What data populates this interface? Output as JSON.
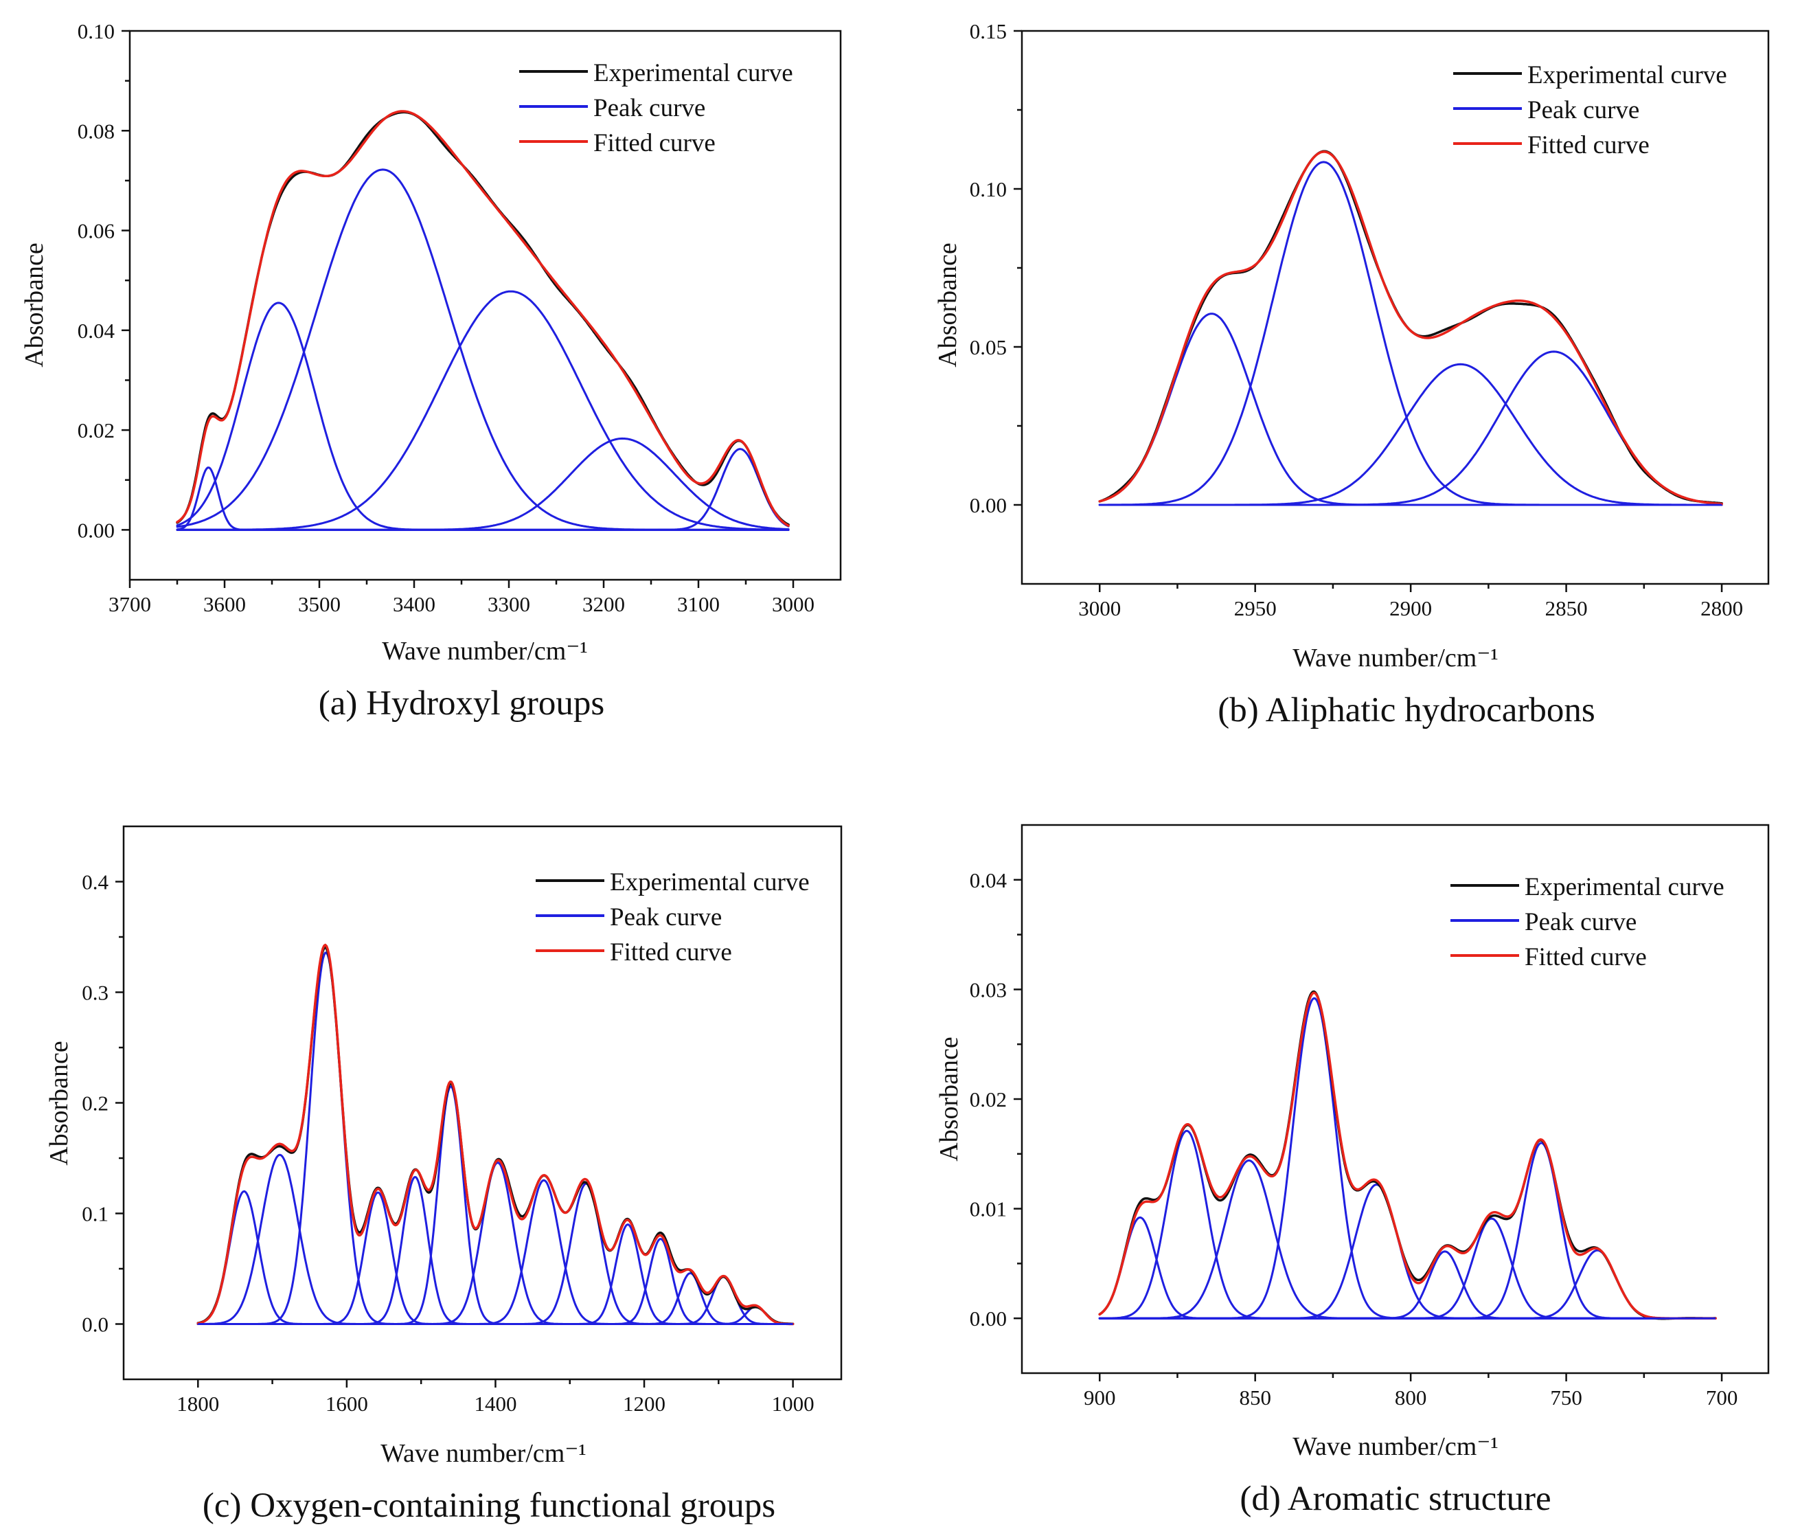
{
  "chart_data": [
    {
      "type": "line",
      "caption": "(a) Hydroxyl groups",
      "xlabel": "Wave number/cm⁻¹",
      "ylabel": "Absorbance",
      "xlim": [
        3700,
        2950
      ],
      "ylim": [
        -0.01,
        0.1
      ],
      "xticks": [
        {
          "value": 3700,
          "label": "3700"
        },
        {
          "value": 3600,
          "label": "3600"
        },
        {
          "value": 3500,
          "label": "3500"
        },
        {
          "value": 3400,
          "label": "3400"
        },
        {
          "value": 3300,
          "label": "3300"
        },
        {
          "value": 3200,
          "label": "3200"
        },
        {
          "value": 3100,
          "label": "3100"
        },
        {
          "value": 3000,
          "label": "3000"
        }
      ],
      "yticks": [
        {
          "value": 0.0,
          "label": "0.00"
        },
        {
          "value": 0.02,
          "label": "0.02"
        },
        {
          "value": 0.04,
          "label": "0.04"
        },
        {
          "value": 0.06,
          "label": "0.06"
        },
        {
          "value": 0.08,
          "label": "0.08"
        },
        {
          "value": 0.1,
          "label": "0.10"
        }
      ],
      "x_range": [
        3650,
        3005
      ],
      "legend": {
        "position": "top-right",
        "entries": [
          {
            "label": "Experimental curve",
            "color": "#111111"
          },
          {
            "label": "Peak curve",
            "color": "#1f1fe0"
          },
          {
            "label": "Fitted curve",
            "color": "#e8231a"
          }
        ]
      },
      "peaks": [
        {
          "center": 3617,
          "height": 0.0125,
          "fwhm": 24
        },
        {
          "center": 3543,
          "height": 0.0455,
          "fwhm": 90
        },
        {
          "center": 3433,
          "height": 0.0722,
          "fwhm": 165
        },
        {
          "center": 3298,
          "height": 0.0478,
          "fwhm": 175
        },
        {
          "center": 3180,
          "height": 0.0183,
          "fwhm": 130
        },
        {
          "center": 3056,
          "height": 0.0162,
          "fwhm": 48
        }
      ]
    },
    {
      "type": "line",
      "caption": "(b) Aliphatic hydrocarbons",
      "xlabel": "Wave number/cm⁻¹",
      "ylabel": "Absorbance",
      "xlim": [
        3025,
        2785
      ],
      "ylim": [
        -0.025,
        0.15
      ],
      "xticks": [
        {
          "value": 3000,
          "label": "3000"
        },
        {
          "value": 2950,
          "label": "2950"
        },
        {
          "value": 2900,
          "label": "2900"
        },
        {
          "value": 2850,
          "label": "2850"
        },
        {
          "value": 2800,
          "label": "2800"
        }
      ],
      "yticks": [
        {
          "value": 0.0,
          "label": "0.00"
        },
        {
          "value": 0.05,
          "label": "0.05"
        },
        {
          "value": 0.1,
          "label": "0.10"
        },
        {
          "value": 0.15,
          "label": "0.15"
        }
      ],
      "x_range": [
        3000,
        2800
      ],
      "legend": {
        "position": "top-right",
        "entries": [
          {
            "label": "Experimental curve",
            "color": "#111111"
          },
          {
            "label": "Peak curve",
            "color": "#1f1fe0"
          },
          {
            "label": "Fitted curve",
            "color": "#e8231a"
          }
        ]
      },
      "peaks": [
        {
          "center": 2964,
          "height": 0.0605,
          "fwhm": 30
        },
        {
          "center": 2928,
          "height": 0.1085,
          "fwhm": 38
        },
        {
          "center": 2884,
          "height": 0.0445,
          "fwhm": 42
        },
        {
          "center": 2854,
          "height": 0.0485,
          "fwhm": 40
        }
      ]
    },
    {
      "type": "line",
      "caption": "(c) Oxygen-containing functional groups",
      "xlabel": "Wave number/cm⁻¹",
      "ylabel": "Absorbance",
      "xlim": [
        1900,
        935
      ],
      "ylim": [
        -0.05,
        0.45
      ],
      "xticks": [
        {
          "value": 1800,
          "label": "1800"
        },
        {
          "value": 1600,
          "label": "1600"
        },
        {
          "value": 1400,
          "label": "1400"
        },
        {
          "value": 1200,
          "label": "1200"
        },
        {
          "value": 1000,
          "label": "1000"
        }
      ],
      "yticks": [
        {
          "value": 0.0,
          "label": "0.0"
        },
        {
          "value": 0.1,
          "label": "0.1"
        },
        {
          "value": 0.2,
          "label": "0.2"
        },
        {
          "value": 0.3,
          "label": "0.3"
        },
        {
          "value": 0.4,
          "label": "0.4"
        }
      ],
      "x_range": [
        1800,
        1000
      ],
      "legend": {
        "position": "top-right",
        "entries": [
          {
            "label": "Experimental curve",
            "color": "#111111"
          },
          {
            "label": "Peak curve",
            "color": "#1f1fe0"
          },
          {
            "label": "Fitted curve",
            "color": "#e8231a"
          }
        ]
      },
      "peaks": [
        {
          "center": 1738,
          "height": 0.12,
          "fwhm": 45
        },
        {
          "center": 1690,
          "height": 0.153,
          "fwhm": 58
        },
        {
          "center": 1628,
          "height": 0.336,
          "fwhm": 50
        },
        {
          "center": 1558,
          "height": 0.119,
          "fwhm": 42
        },
        {
          "center": 1508,
          "height": 0.133,
          "fwhm": 40
        },
        {
          "center": 1460,
          "height": 0.215,
          "fwhm": 40
        },
        {
          "center": 1397,
          "height": 0.146,
          "fwhm": 50
        },
        {
          "center": 1335,
          "height": 0.13,
          "fwhm": 50
        },
        {
          "center": 1278,
          "height": 0.127,
          "fwhm": 48
        },
        {
          "center": 1222,
          "height": 0.09,
          "fwhm": 38
        },
        {
          "center": 1178,
          "height": 0.077,
          "fwhm": 36
        },
        {
          "center": 1138,
          "height": 0.046,
          "fwhm": 34
        },
        {
          "center": 1093,
          "height": 0.043,
          "fwhm": 36
        },
        {
          "center": 1050,
          "height": 0.016,
          "fwhm": 30
        }
      ]
    },
    {
      "type": "line",
      "caption": "(d) Aromatic structure",
      "xlabel": "Wave number/cm⁻¹",
      "ylabel": "Absorbance",
      "xlim": [
        925,
        685
      ],
      "ylim": [
        -0.005,
        0.045
      ],
      "xticks": [
        {
          "value": 900,
          "label": "900"
        },
        {
          "value": 850,
          "label": "850"
        },
        {
          "value": 800,
          "label": "800"
        },
        {
          "value": 750,
          "label": "750"
        },
        {
          "value": 700,
          "label": "700"
        }
      ],
      "yticks": [
        {
          "value": 0.0,
          "label": "0.00"
        },
        {
          "value": 0.01,
          "label": "0.01"
        },
        {
          "value": 0.02,
          "label": "0.02"
        },
        {
          "value": 0.03,
          "label": "0.03"
        },
        {
          "value": 0.04,
          "label": "0.04"
        }
      ],
      "x_range": [
        900,
        702
      ],
      "legend": {
        "position": "top-right",
        "entries": [
          {
            "label": "Experimental curve",
            "color": "#111111"
          },
          {
            "label": "Peak curve",
            "color": "#1f1fe0"
          },
          {
            "label": "Fitted curve",
            "color": "#e8231a"
          }
        ]
      },
      "peaks": [
        {
          "center": 887,
          "height": 0.0092,
          "fwhm": 12
        },
        {
          "center": 872,
          "height": 0.0171,
          "fwhm": 15
        },
        {
          "center": 852,
          "height": 0.0144,
          "fwhm": 18
        },
        {
          "center": 831,
          "height": 0.0292,
          "fwhm": 16
        },
        {
          "center": 811,
          "height": 0.0122,
          "fwhm": 16
        },
        {
          "center": 789,
          "height": 0.0061,
          "fwhm": 12
        },
        {
          "center": 774,
          "height": 0.0091,
          "fwhm": 14
        },
        {
          "center": 758,
          "height": 0.016,
          "fwhm": 14
        },
        {
          "center": 740,
          "height": 0.0062,
          "fwhm": 14
        }
      ]
    }
  ]
}
